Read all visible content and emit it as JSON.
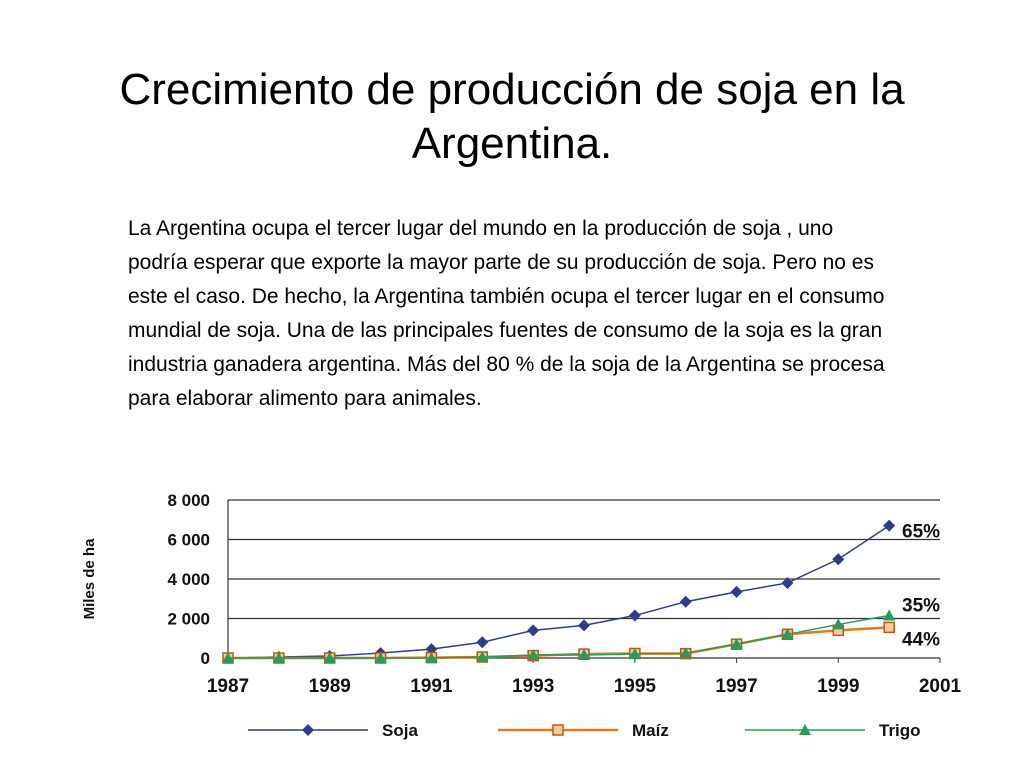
{
  "slide": {
    "title": "Crecimiento de producción de soja en la Argentina.",
    "body": "La Argentina ocupa el tercer lugar del mundo en la producción de soja , uno podría esperar que exporte la mayor parte de su producción de soja. Pero no es este el caso. De hecho, la Argentina también ocupa el tercer lugar en el consumo mundial de soja. Una de las principales fuentes de consumo de la soja es la gran industria ganadera argentina. Más del 80 % de la soja de la Argentina se procesa para elaborar alimento para animales."
  },
  "chart_data": {
    "type": "line",
    "title": "",
    "xlabel": "",
    "ylabel": "Miles de ha",
    "x": [
      1987,
      1988,
      1989,
      1990,
      1991,
      1992,
      1993,
      1994,
      1995,
      1996,
      1997,
      1998,
      1999,
      2000
    ],
    "xticks": [
      "1987",
      "1989",
      "1991",
      "1993",
      "1995",
      "1997",
      "1999",
      "2001"
    ],
    "xlim": [
      1987,
      2001
    ],
    "ylim": [
      0,
      8000
    ],
    "yticks": [
      "0",
      "2 000",
      "4 000",
      "6 000",
      "8 000"
    ],
    "grid": "horizontal",
    "legend_position": "bottom",
    "series": [
      {
        "name": "Soja",
        "color": "#2e3c8c",
        "marker": "diamond",
        "values": [
          0,
          50,
          100,
          250,
          450,
          800,
          1400,
          1650,
          2150,
          2850,
          3350,
          3800,
          5000,
          6700
        ],
        "end_label": "65%"
      },
      {
        "name": "Maíz",
        "color": "#e07b22",
        "marker": "square",
        "values": [
          0,
          0,
          0,
          0,
          20,
          50,
          120,
          200,
          230,
          220,
          700,
          1200,
          1400,
          1550
        ],
        "end_label": "44%"
      },
      {
        "name": "Trigo",
        "color": "#2a9a5a",
        "marker": "triangle",
        "values": [
          0,
          0,
          0,
          0,
          0,
          50,
          150,
          150,
          200,
          250,
          700,
          1200,
          1700,
          2150
        ],
        "end_label": "35%"
      }
    ]
  }
}
